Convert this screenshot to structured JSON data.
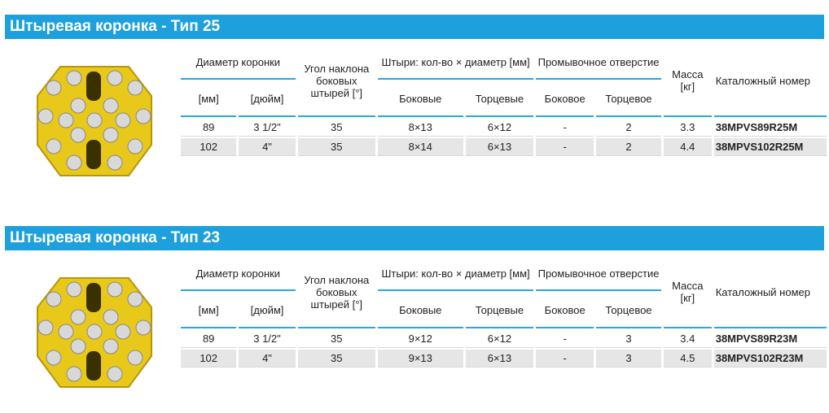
{
  "sections": [
    {
      "title": "Штыревая коронка - Тип 25",
      "header": {
        "diameter": "Диаметр коронки",
        "angle": "Угол наклона боковых штырей [°]",
        "pins": "Штыри: кол-во × диаметр [мм]",
        "flush": "Промывочное отверстие",
        "mass": "Масса [кг]",
        "catalog": "Каталожный номер",
        "diameter_mm": "[мм]",
        "diameter_in": "[дюйм]",
        "pins_side": "Боковые",
        "pins_face": "Торцевые",
        "flush_side": "Боковое",
        "flush_face": "Торцевое"
      },
      "rows": [
        [
          89,
          "3 1/2\"",
          35,
          "8×13",
          "6×12",
          "-",
          2,
          3.3,
          "38MPVS89R25M"
        ],
        [
          102,
          "4\"",
          35,
          "8×14",
          "6×13",
          "-",
          2,
          4.4,
          "38MPVS102R25M"
        ]
      ]
    },
    {
      "title": "Штыревая коронка - Тип 23",
      "header": {
        "diameter": "Диаметр коронки",
        "angle": "Угол наклона боковых штырей [°]",
        "pins": "Штыри: кол-во × диаметр [мм]",
        "flush": "Промывочное отверстие",
        "mass": "Масса [кг]",
        "catalog": "Каталожный номер",
        "diameter_mm": "[мм]",
        "diameter_in": "[дюйм]",
        "pins_side": "Боковые",
        "pins_face": "Торцевые",
        "flush_side": "Боковое",
        "flush_face": "Торцевое"
      },
      "rows": [
        [
          89,
          "3 1/2\"",
          35,
          "9×12",
          "6×12",
          "-",
          3,
          3.4,
          "38MPVS89R23M"
        ],
        [
          102,
          "4\"",
          35,
          "9×13",
          "6×13",
          "-",
          3,
          4.5,
          "38MPVS102R23M"
        ]
      ]
    }
  ]
}
